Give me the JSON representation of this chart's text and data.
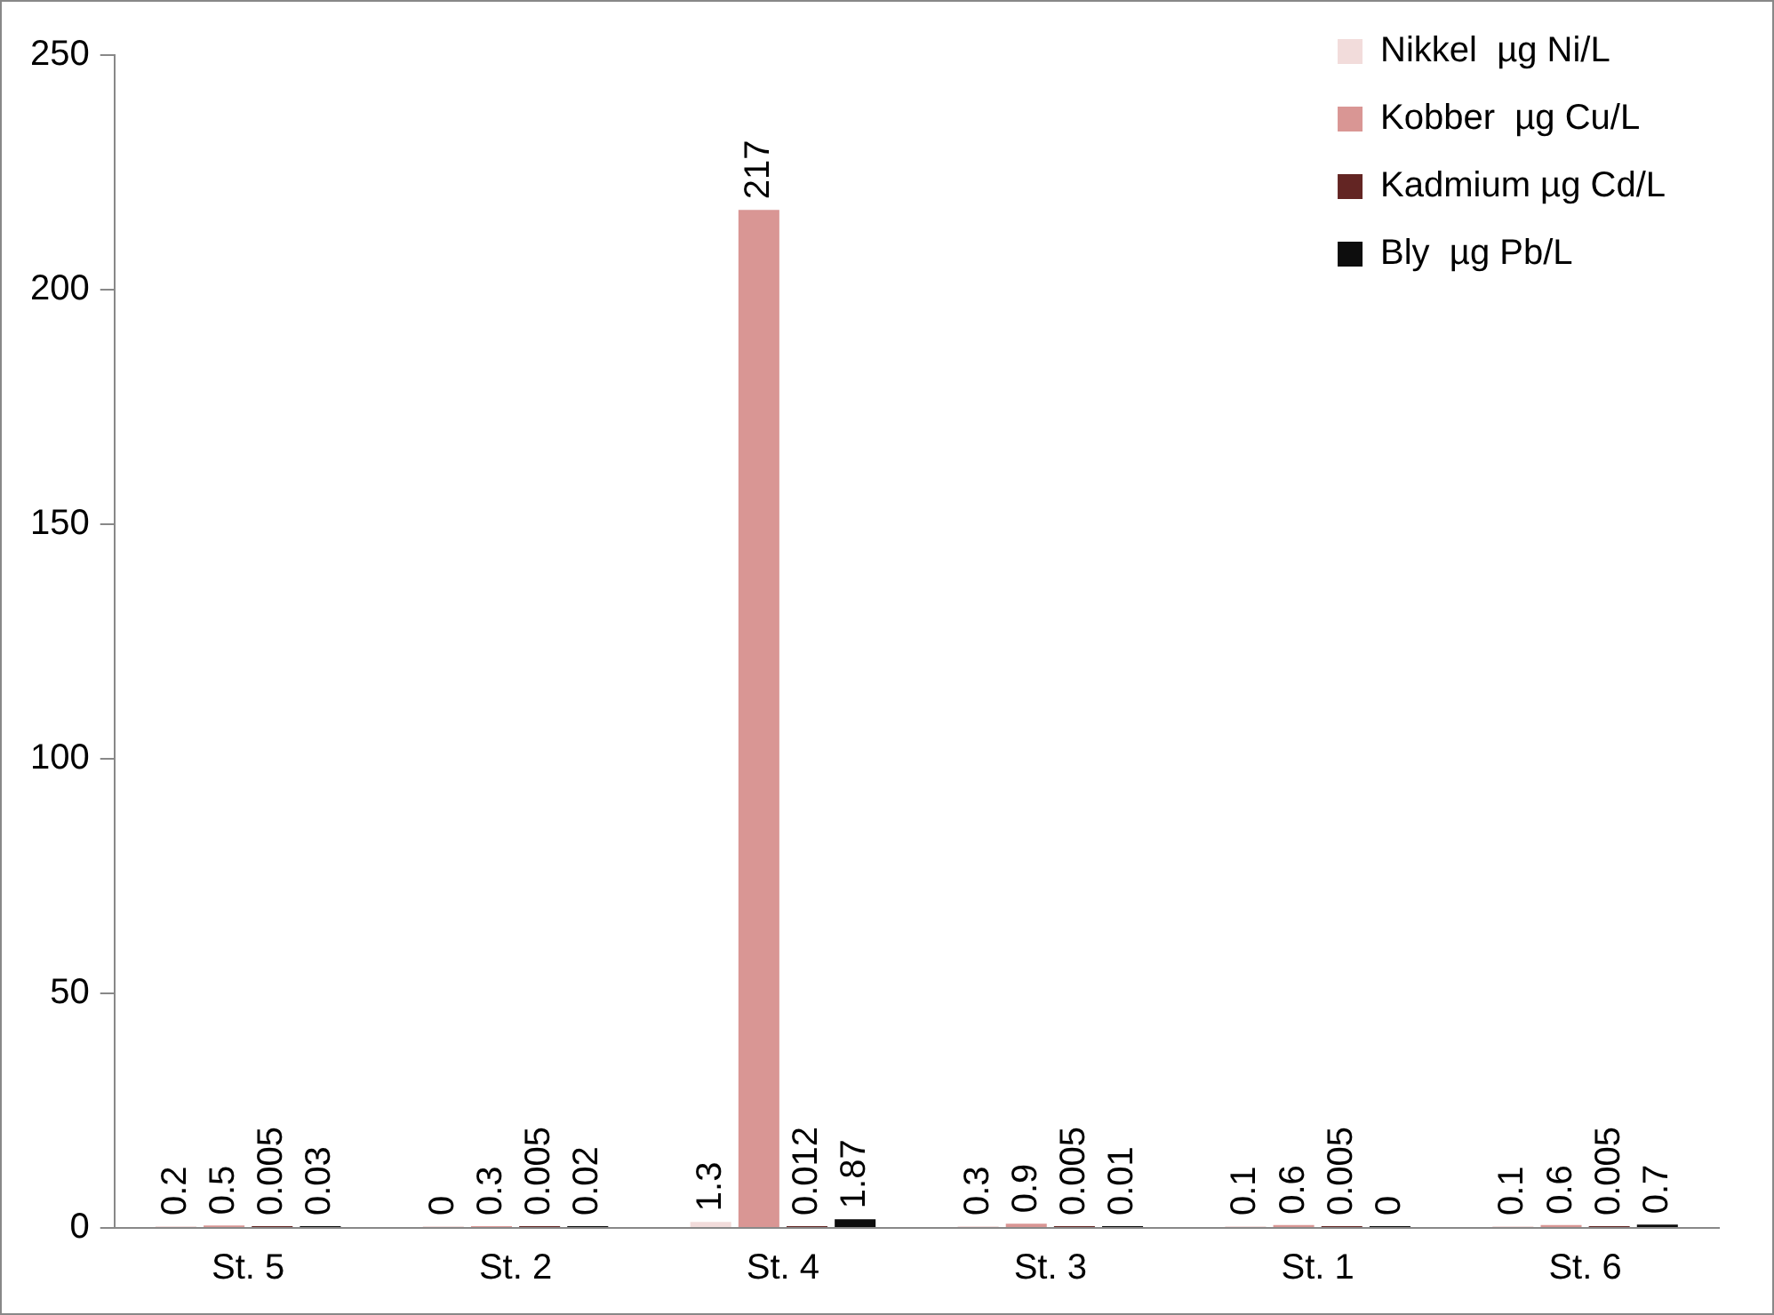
{
  "chart_data": {
    "type": "bar",
    "categories": [
      "St. 5",
      "St. 2",
      "St. 4",
      "St. 3",
      "St. 1",
      "St. 6"
    ],
    "series": [
      {
        "name": "Nikkel  µg Ni/L",
        "color": "#f2dcdb",
        "values": [
          0.2,
          0,
          1.3,
          0.3,
          0.1,
          0.1
        ]
      },
      {
        "name": "Kobber  µg Cu/L",
        "color": "#d99694",
        "values": [
          0.5,
          0.3,
          217,
          0.9,
          0.6,
          0.6
        ]
      },
      {
        "name": "Kadmium µg Cd/L",
        "color": "#632523",
        "values": [
          0.005,
          0.005,
          0.012,
          0.005,
          0.005,
          0.005
        ]
      },
      {
        "name": "Bly  µg Pb/L",
        "color": "#0d0d0d",
        "values": [
          0.03,
          0.02,
          1.87,
          0.01,
          0,
          0.7
        ]
      }
    ],
    "ylim": [
      0,
      250
    ],
    "yticks": [
      0,
      50,
      100,
      150,
      200,
      250
    ],
    "grid": false,
    "legend": "top right",
    "data_labels": true
  }
}
